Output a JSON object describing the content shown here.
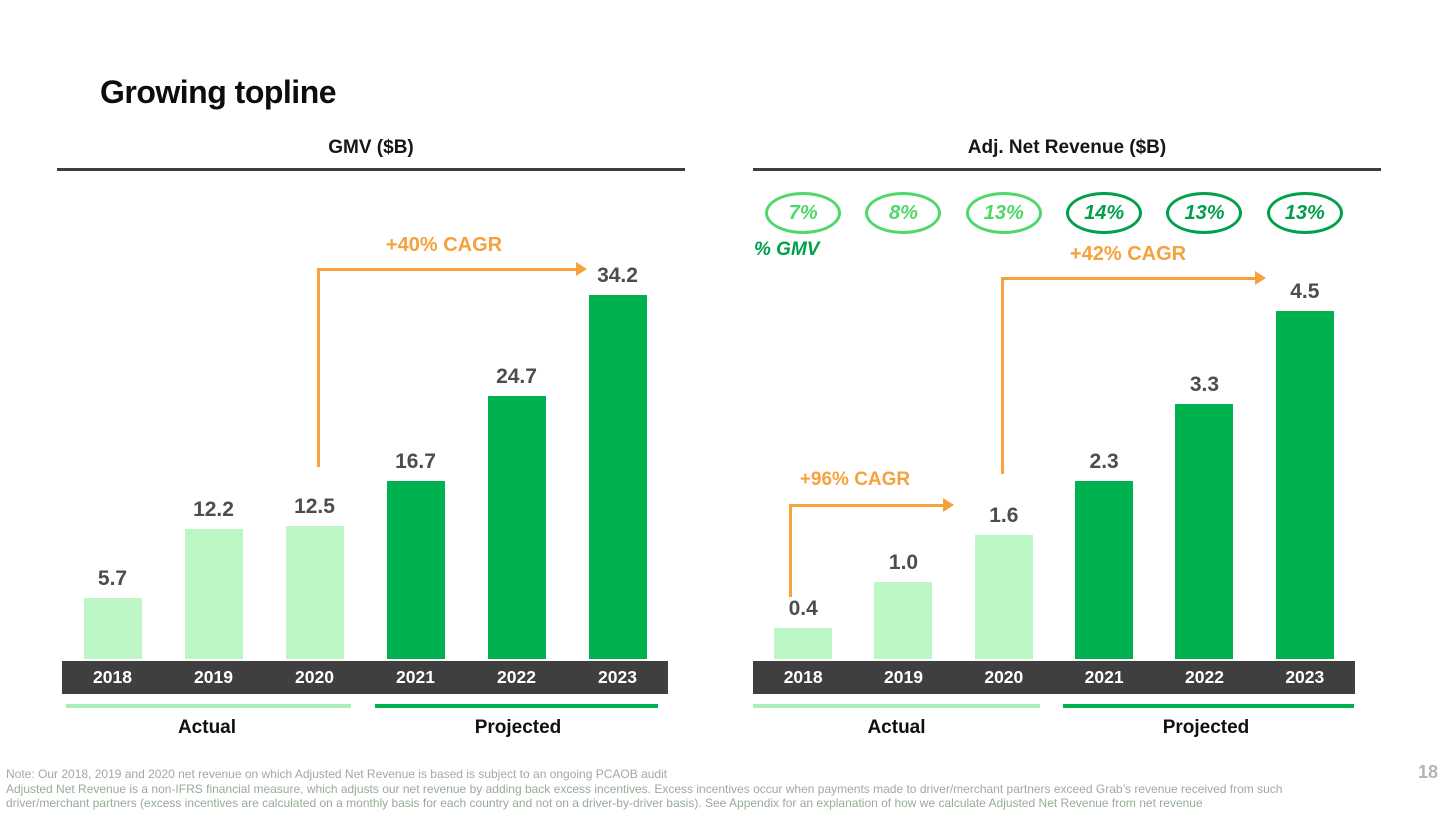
{
  "slide": {
    "title": "Growing topline",
    "page_number": "18"
  },
  "colors": {
    "bar_light_green": "#bcf6c5",
    "bar_dark_green": "#00b14f",
    "oval_light_green": "#4fd768",
    "oval_dark_green": "#00a14a",
    "accent_orange": "#f6a13c",
    "axis_band": "#3f3f3f",
    "value_text": "#4d4d4d"
  },
  "chart_data": [
    {
      "type": "bar",
      "title": "GMV ($B)",
      "categories": [
        "2018",
        "2019",
        "2020",
        "2021",
        "2022",
        "2023"
      ],
      "values": [
        5.7,
        12.2,
        12.5,
        16.7,
        24.7,
        34.2
      ],
      "value_labels": [
        "5.7",
        "12.2",
        "12.5",
        "16.7",
        "24.7",
        "34.2"
      ],
      "bar_tones": [
        "light",
        "light",
        "light",
        "dark",
        "dark",
        "dark"
      ],
      "group_labels": {
        "actual": "Actual",
        "projected": "Projected"
      },
      "groups": {
        "actual": [
          "2018",
          "2019",
          "2020"
        ],
        "projected": [
          "2021",
          "2022",
          "2023"
        ]
      },
      "annotations": [
        {
          "text": "+40% CAGR",
          "from": "2020",
          "to": "2023"
        }
      ],
      "ylim": [
        0,
        36
      ],
      "grid": false,
      "legend": false
    },
    {
      "type": "bar",
      "title": "Adj. Net Revenue ($B)",
      "categories": [
        "2018",
        "2019",
        "2020",
        "2021",
        "2022",
        "2023"
      ],
      "values": [
        0.4,
        1.0,
        1.6,
        2.3,
        3.3,
        4.5
      ],
      "value_labels": [
        "0.4",
        "1.0",
        "1.6",
        "2.3",
        "3.3",
        "4.5"
      ],
      "bar_tones": [
        "light",
        "light",
        "light",
        "dark",
        "dark",
        "dark"
      ],
      "group_labels": {
        "actual": "Actual",
        "projected": "Projected"
      },
      "groups": {
        "actual": [
          "2018",
          "2019",
          "2020"
        ],
        "projected": [
          "2021",
          "2022",
          "2023"
        ]
      },
      "pct_gmv_caption": "% GMV",
      "pct_gmv": [
        {
          "label": "7%",
          "tone": "light"
        },
        {
          "label": "8%",
          "tone": "light"
        },
        {
          "label": "13%",
          "tone": "light"
        },
        {
          "label": "14%",
          "tone": "dark"
        },
        {
          "label": "13%",
          "tone": "dark"
        },
        {
          "label": "13%",
          "tone": "dark"
        }
      ],
      "annotations": [
        {
          "text": "+96% CAGR",
          "from": "2018",
          "to": "2020"
        },
        {
          "text": "+42% CAGR",
          "from": "2020",
          "to": "2023"
        }
      ],
      "ylim": [
        0,
        4.7
      ],
      "grid": false,
      "legend": false
    }
  ],
  "note": {
    "lines": [
      [
        {
          "tone": "gray",
          "text": "Note: Our 2018, 2019 and 2020 net revenue on which Adjusted Net Revenue is based is subject to an ongoing PCAOB audit"
        }
      ],
      [
        {
          "tone": "green",
          "text": "Adjusted Net Revenue is a non-IFRS financial measure, which adjusts our net revenue by adding back excess incentives. "
        },
        {
          "tone": "gray",
          "text": "Excess incentives occur when payments made to driver/merchant partners exceed Grab’s revenue received from such"
        }
      ],
      [
        {
          "tone": "green",
          "text": "driver/merchant partners (excess incentives are calculated on a monthly basis for each country and not on a driver-by-driver basis). See Appendix for an explanation of how we calculate Adjusted Net Revenue from net revenue"
        }
      ]
    ]
  }
}
